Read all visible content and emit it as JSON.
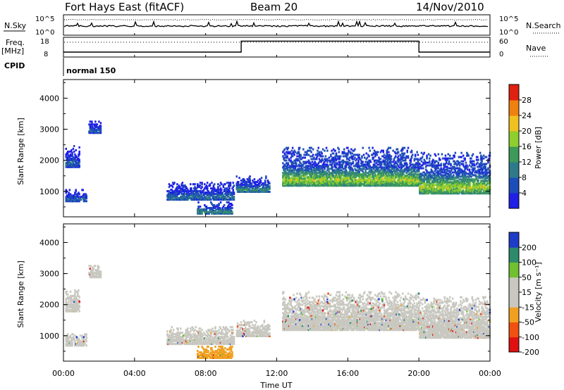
{
  "header": {
    "station": "Fort Hays East (fitACF)",
    "beam": "Beam 20",
    "date": "14/Nov/2010"
  },
  "strips": {
    "nsky_label": "N.Sky",
    "nsearch_label": "N.Search",
    "nsky_ticks": [
      "10^5",
      "10^0"
    ],
    "nsearch_ticks": [
      "10^5",
      "10^0"
    ],
    "freq_label": "Freq.",
    "freq_unit": "[MHz]",
    "freq_ticks": [
      "18",
      "8"
    ],
    "nave_label": "Nave",
    "nave_ticks": [
      "60",
      "0"
    ],
    "cpid_label": "CPID",
    "cpid_value": "normal 150"
  },
  "axes": {
    "xlabel": "Time UT",
    "ylabel": "Slant Range [km]",
    "x_ticks": [
      "00:00",
      "04:00",
      "08:00",
      "12:00",
      "16:00",
      "20:00",
      "00:00"
    ],
    "y_ticks": [
      "4000",
      "3000",
      "2000",
      "1000"
    ]
  },
  "colorbars": {
    "power_label": "Power [dB]",
    "power_ticks": [
      "28",
      "24",
      "20",
      "16",
      "12",
      "8",
      "4"
    ],
    "velocity_label": "Velocity [m s⁻¹]",
    "velocity_ticks": [
      "200",
      "100",
      "50",
      "15",
      "-15",
      "-50",
      "-100",
      "-200"
    ]
  },
  "chart_data": {
    "type": "heatmap",
    "x_range_hours": [
      0,
      24
    ],
    "y_range_km": [
      180,
      4600
    ],
    "freq_mhz": {
      "segments": [
        {
          "start_h": 0,
          "end_h": 10,
          "value": 10.5
        },
        {
          "start_h": 10,
          "end_h": 20,
          "value": 17
        },
        {
          "start_h": 20,
          "end_h": 24,
          "value": 10.5
        }
      ]
    },
    "echo_regions": [
      {
        "start_h": 0.1,
        "end_h": 0.9,
        "range_low_km": 1750,
        "range_high_km": 2450,
        "power_db": 6,
        "velocity": 0
      },
      {
        "start_h": 0.1,
        "end_h": 1.3,
        "range_low_km": 650,
        "range_high_km": 1050,
        "power_db": 6,
        "velocity": 0
      },
      {
        "start_h": 1.4,
        "end_h": 2.1,
        "range_low_km": 2850,
        "range_high_km": 3250,
        "power_db": 6,
        "velocity": 0
      },
      {
        "start_h": 5.8,
        "end_h": 9.6,
        "range_low_km": 700,
        "range_high_km": 1250,
        "power_db": 7,
        "velocity": 0
      },
      {
        "start_h": 7.5,
        "end_h": 9.5,
        "range_low_km": 250,
        "range_high_km": 650,
        "power_db": 9,
        "velocity": -30
      },
      {
        "start_h": 9.7,
        "end_h": 11.6,
        "range_low_km": 950,
        "range_high_km": 1450,
        "power_db": 9,
        "velocity": 0
      },
      {
        "start_h": 12.3,
        "end_h": 20,
        "range_low_km": 1150,
        "range_high_km": 2400,
        "power_db": 14,
        "velocity": 0
      },
      {
        "start_h": 20,
        "end_h": 24,
        "range_low_km": 900,
        "range_high_km": 2250,
        "power_db": 14,
        "velocity": 0
      }
    ]
  },
  "colors": {
    "power_scale": [
      "#1f1fe6",
      "#1c4db8",
      "#2e7a8a",
      "#3d9a5a",
      "#8fce2f",
      "#f0c020",
      "#f08010",
      "#e02010"
    ],
    "velocity_scale": [
      "#e01010",
      "#f05010",
      "#f0a020",
      "#c8c8c0",
      "#c8c8c0",
      "#70c030",
      "#2d8a6a",
      "#1e3cc8"
    ]
  }
}
